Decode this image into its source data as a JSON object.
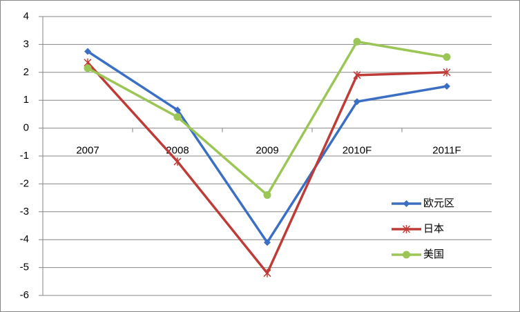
{
  "chart_data": {
    "type": "line",
    "categories": [
      "2007",
      "2008",
      "2009",
      "2010F",
      "2011F"
    ],
    "series": [
      {
        "name": "欧元区",
        "color": "#3b6fc4",
        "marker": "diamond",
        "values": [
          2.75,
          0.65,
          -4.1,
          0.95,
          1.5
        ]
      },
      {
        "name": "日本",
        "color": "#be3b37",
        "marker": "asterisk",
        "values": [
          2.35,
          -1.2,
          -5.2,
          1.9,
          2.0
        ]
      },
      {
        "name": "美国",
        "color": "#9bc655",
        "marker": "circle",
        "values": [
          2.15,
          0.4,
          -2.4,
          3.1,
          2.55
        ]
      }
    ],
    "ylim": [
      -6,
      4
    ],
    "yticks": [
      -6,
      -5,
      -4,
      -3,
      -2,
      -1,
      0,
      1,
      2,
      3,
      4
    ],
    "grid": true,
    "legend": "lower-right"
  }
}
